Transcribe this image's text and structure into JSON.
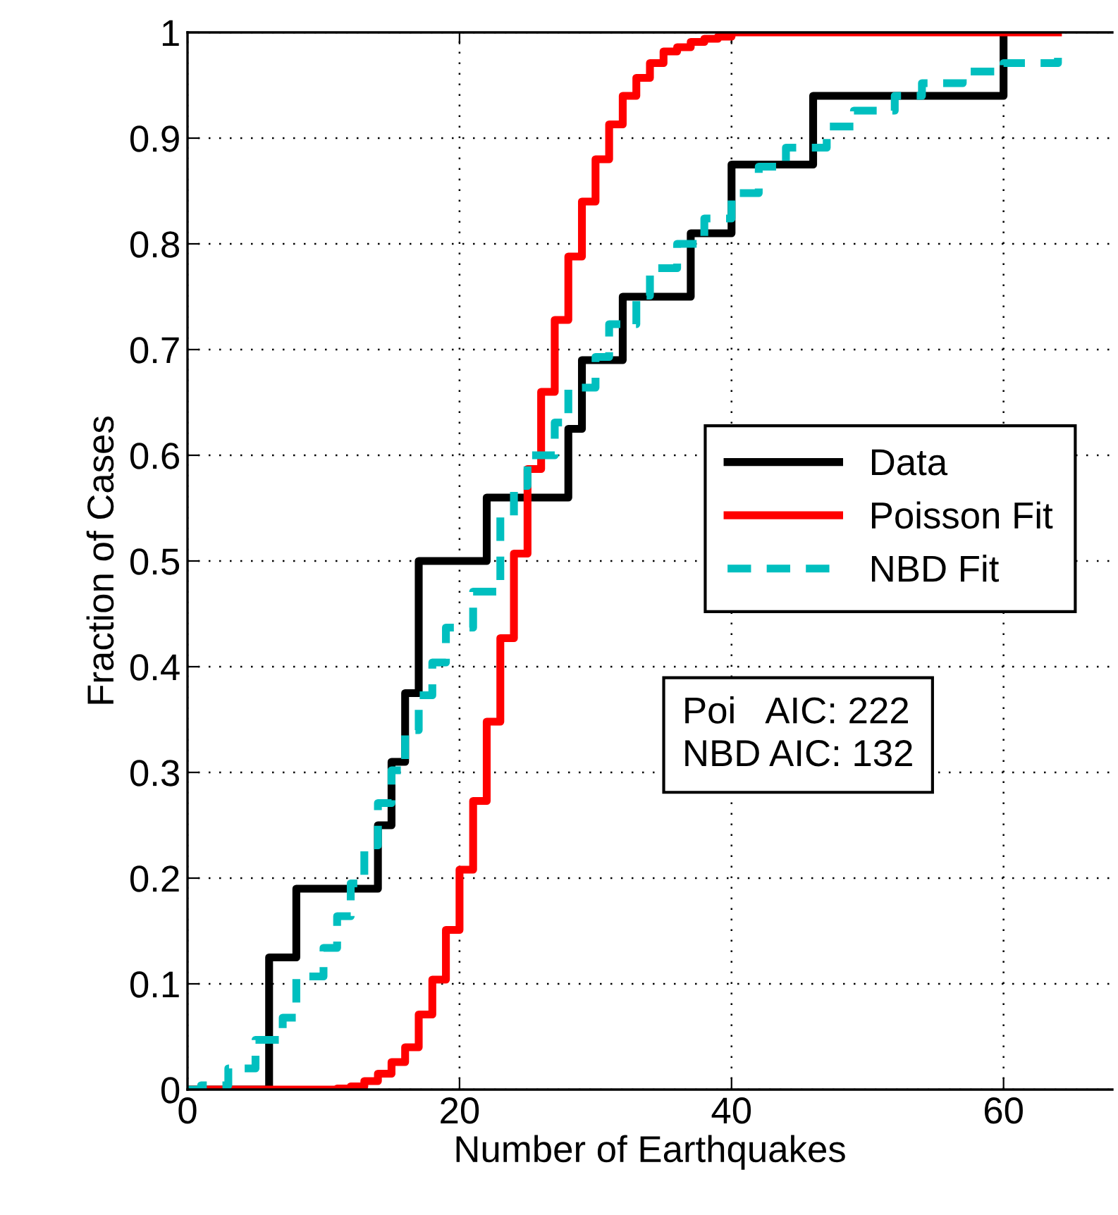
{
  "chart_data": {
    "type": "step",
    "xlabel": "Number of Earthquakes",
    "ylabel": "Fraction of Cases",
    "series": [
      {
        "name": "Data",
        "color": "#000000",
        "line_style": "solid",
        "x": [
          0,
          6,
          8,
          14,
          15,
          16,
          17,
          22,
          28,
          29,
          32,
          37,
          40,
          46,
          60
        ],
        "values": [
          0,
          0.125,
          0.19,
          0.25,
          0.31,
          0.375,
          0.5,
          0.56,
          0.625,
          0.69,
          0.75,
          0.81,
          0.875,
          0.94,
          1
        ]
      },
      {
        "name": "Poisson Fit",
        "color": "#ff0000",
        "line_style": "solid",
        "x": [
          0,
          11,
          12,
          13,
          14,
          15,
          16,
          17,
          18,
          19,
          20,
          21,
          22,
          23,
          24,
          25,
          26,
          27,
          28,
          29,
          30,
          31,
          32,
          33,
          34,
          35,
          36,
          37,
          38,
          39,
          40,
          64
        ],
        "values": [
          0,
          0.001,
          0.003,
          0.008,
          0.015,
          0.026,
          0.04,
          0.071,
          0.104,
          0.151,
          0.208,
          0.273,
          0.348,
          0.427,
          0.507,
          0.587,
          0.66,
          0.728,
          0.788,
          0.84,
          0.88,
          0.913,
          0.94,
          0.957,
          0.971,
          0.982,
          0.986,
          0.991,
          0.994,
          0.996,
          1,
          1
        ]
      },
      {
        "name": "NBD Fit",
        "color": "#00bfbf",
        "line_style": "dashed",
        "x": [
          0,
          1,
          3,
          5,
          7,
          8,
          10,
          11,
          12,
          13,
          14,
          15,
          16,
          17,
          18,
          19,
          21,
          23,
          24,
          25,
          27,
          28,
          30,
          31,
          33,
          34,
          36,
          38,
          40,
          42,
          44,
          47,
          49,
          52,
          54,
          57,
          60,
          64
        ],
        "values": [
          0,
          0.004,
          0.02,
          0.047,
          0.068,
          0.107,
          0.134,
          0.164,
          0.195,
          0.231,
          0.271,
          0.302,
          0.34,
          0.373,
          0.404,
          0.437,
          0.471,
          0.542,
          0.571,
          0.6,
          0.631,
          0.664,
          0.693,
          0.724,
          0.751,
          0.777,
          0.8,
          0.824,
          0.848,
          0.873,
          0.891,
          0.911,
          0.926,
          0.94,
          0.952,
          0.963,
          0.971,
          0.976
        ]
      }
    ],
    "xlim": [
      0,
      68
    ],
    "xticks": [
      0,
      20,
      40,
      60
    ],
    "ylim": [
      0,
      1
    ],
    "yticks": [
      0,
      0.1,
      0.2,
      0.3,
      0.4,
      0.5,
      0.6,
      0.7,
      0.8,
      0.9,
      1
    ],
    "grid": true,
    "legend": "right",
    "annotations": [
      "Poi   AIC: 222\nNBD AIC: 132"
    ]
  }
}
